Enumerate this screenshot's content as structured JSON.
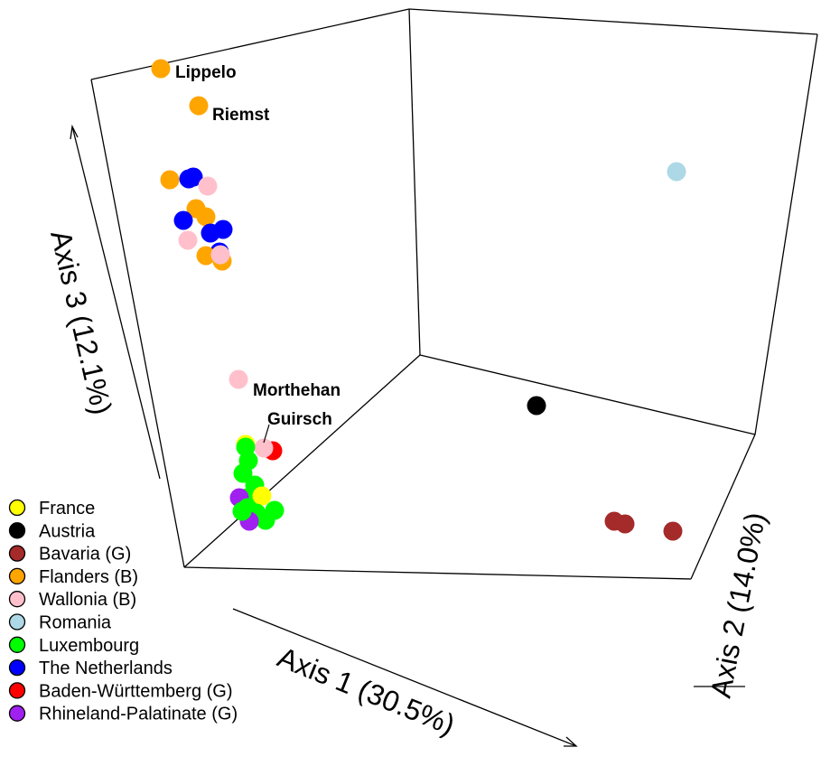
{
  "chart_data": {
    "type": "scatter3d",
    "axes": {
      "x": {
        "label": "Axis 1 (30.5%)"
      },
      "y": {
        "label": "Axis 2 (14.0%)"
      },
      "z": {
        "label": "Axis 3 (12.1%)"
      }
    },
    "groups": [
      {
        "name": "France",
        "color": "#ffff00"
      },
      {
        "name": "Austria",
        "color": "#000000"
      },
      {
        "name": "Bavaria (G)",
        "color": "#a52a2a"
      },
      {
        "name": "Flanders (B)",
        "color": "#ffa500"
      },
      {
        "name": "Wallonia (B)",
        "color": "#ffc0cb"
      },
      {
        "name": "Romania",
        "color": "#add8e6"
      },
      {
        "name": "Luxembourg",
        "color": "#00ff00"
      },
      {
        "name": "The Netherlands",
        "color": "#0000ff"
      },
      {
        "name": "Baden-Württemberg (G)",
        "color": "#ff0000"
      },
      {
        "name": "Rhineland-Palatinate (G)",
        "color": "#a020f0"
      }
    ],
    "points": [
      {
        "group": "Flanders (B)",
        "label": "Lippelo"
      },
      {
        "group": "Flanders (B)",
        "label": "Riemst"
      },
      {
        "group": "Flanders (B)"
      },
      {
        "group": "The Netherlands"
      },
      {
        "group": "The Netherlands"
      },
      {
        "group": "Wallonia (B)"
      },
      {
        "group": "Flanders (B)"
      },
      {
        "group": "The Netherlands"
      },
      {
        "group": "Flanders (B)"
      },
      {
        "group": "The Netherlands"
      },
      {
        "group": "The Netherlands"
      },
      {
        "group": "Wallonia (B)"
      },
      {
        "group": "The Netherlands"
      },
      {
        "group": "Flanders (B)"
      },
      {
        "group": "Flanders (B)"
      },
      {
        "group": "Wallonia (B)"
      },
      {
        "group": "Romania"
      },
      {
        "group": "Wallonia (B)",
        "label": "Morthehan"
      },
      {
        "group": "Austria"
      },
      {
        "group": "Baden-Württemberg (G)"
      },
      {
        "group": "France"
      },
      {
        "group": "Wallonia (B)",
        "label": "Guirsch"
      },
      {
        "group": "Luxembourg"
      },
      {
        "group": "Luxembourg"
      },
      {
        "group": "Luxembourg"
      },
      {
        "group": "Luxembourg"
      },
      {
        "group": "Luxembourg"
      },
      {
        "group": "Rhineland-Palatinate (G)"
      },
      {
        "group": "France"
      },
      {
        "group": "Luxembourg"
      },
      {
        "group": "Luxembourg"
      },
      {
        "group": "Luxembourg"
      },
      {
        "group": "Luxembourg"
      },
      {
        "group": "Rhineland-Palatinate (G)"
      },
      {
        "group": "Luxembourg"
      },
      {
        "group": "Bavaria (G)"
      },
      {
        "group": "Bavaria (G)"
      },
      {
        "group": "Bavaria (G)"
      }
    ],
    "legend_position": "bottom-left",
    "grid": false
  }
}
